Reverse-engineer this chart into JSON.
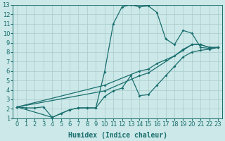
{
  "xlabel": "Humidex (Indice chaleur)",
  "background_color": "#cce8e8",
  "grid_color": "#aacccc",
  "line_color": "#1a6e6e",
  "xlim": [
    -0.5,
    23.5
  ],
  "ylim": [
    1,
    13
  ],
  "xticks": [
    0,
    1,
    2,
    3,
    4,
    5,
    6,
    7,
    8,
    9,
    10,
    11,
    12,
    13,
    14,
    15,
    16,
    17,
    18,
    19,
    20,
    21,
    22,
    23
  ],
  "yticks": [
    1,
    2,
    3,
    4,
    5,
    6,
    7,
    8,
    9,
    10,
    11,
    12,
    13
  ],
  "line1_x": [
    0,
    1,
    2,
    3,
    4,
    5,
    6,
    7,
    8,
    9,
    10,
    11,
    12,
    13,
    14,
    15,
    16,
    17,
    18,
    19,
    20,
    21,
    22,
    23
  ],
  "line1_y": [
    2.2,
    2.1,
    2.1,
    2.2,
    1.1,
    1.5,
    1.9,
    2.1,
    2.1,
    2.1,
    5.9,
    11.0,
    12.8,
    13.0,
    12.8,
    12.9,
    12.2,
    9.4,
    8.8,
    10.3,
    10.0,
    8.5,
    8.4,
    8.5
  ],
  "line2_x": [
    0,
    10,
    14,
    15,
    19,
    20,
    21,
    22,
    23
  ],
  "line2_y": [
    2.2,
    3.9,
    5.5,
    5.8,
    8.2,
    8.8,
    8.8,
    8.5,
    8.5
  ],
  "line3_x": [
    0,
    10,
    14,
    15,
    16,
    17,
    18,
    19,
    20,
    21,
    22,
    23
  ],
  "line3_y": [
    2.2,
    4.5,
    6.0,
    6.2,
    6.8,
    7.2,
    7.6,
    8.3,
    8.8,
    8.8,
    8.5,
    8.5
  ],
  "line4_x": [
    0,
    4,
    5,
    6,
    7,
    8,
    9,
    10,
    11,
    12,
    13,
    14,
    15,
    16,
    17,
    18,
    19,
    20,
    21,
    22,
    23
  ],
  "line4_y": [
    2.2,
    1.1,
    1.5,
    1.9,
    2.1,
    2.1,
    2.1,
    3.3,
    3.9,
    4.2,
    5.5,
    3.4,
    3.5,
    4.5,
    5.5,
    6.5,
    7.5,
    8.0,
    8.2,
    8.3,
    8.5
  ],
  "markersize": 2.0,
  "linewidth": 0.9,
  "fontsize_labels": 7,
  "fontsize_ticks": 6
}
